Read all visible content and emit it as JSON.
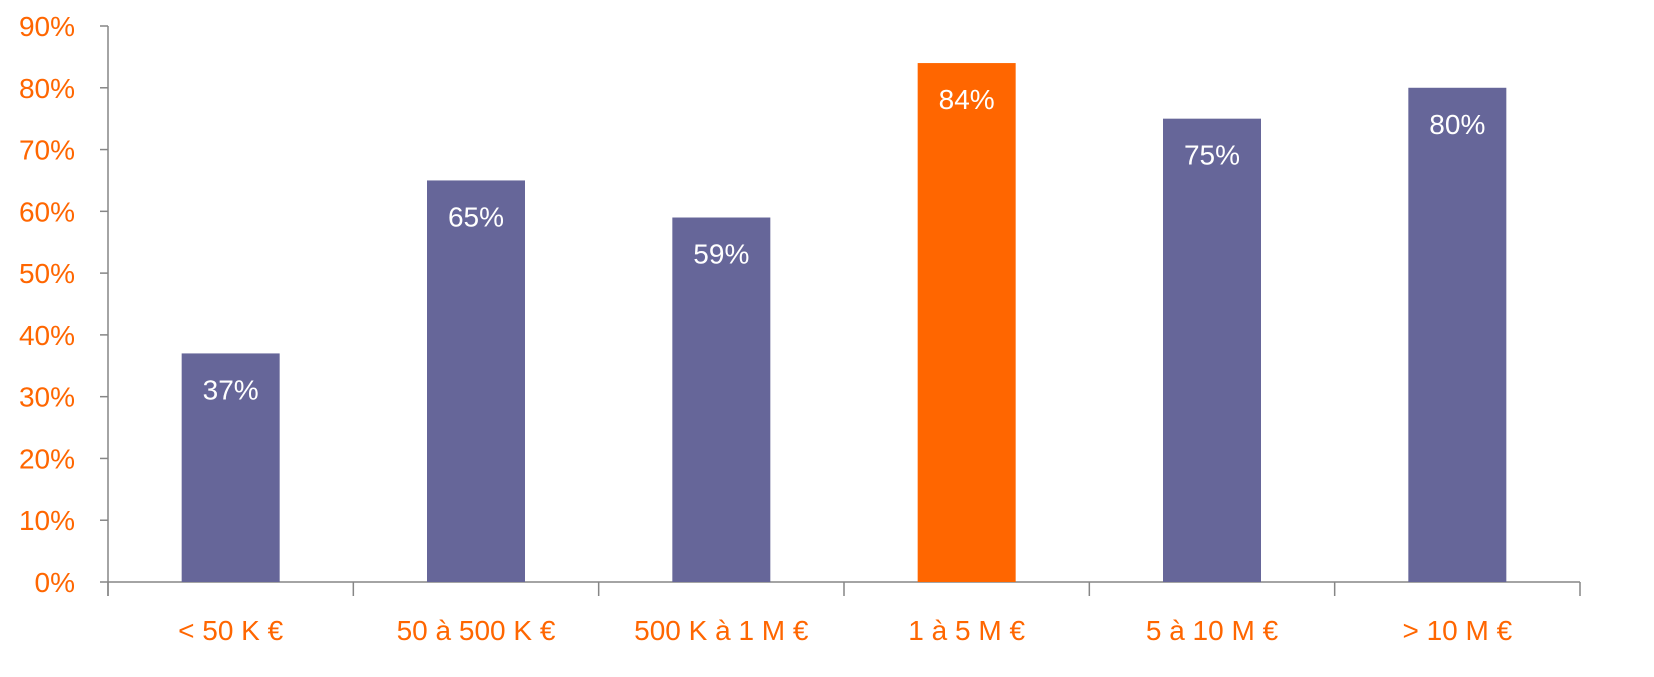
{
  "chart_data": {
    "type": "bar",
    "categories": [
      "< 50 K €",
      "50 à 500 K €",
      "500 K à 1 M €",
      "1 à 5 M €",
      "5 à 10 M €",
      "> 10 M €"
    ],
    "values": [
      37,
      65,
      59,
      84,
      75,
      80
    ],
    "data_labels": [
      "37%",
      "65%",
      "59%",
      "84%",
      "75%",
      "80%"
    ],
    "y_ticks": [
      "0%",
      "10%",
      "20%",
      "30%",
      "40%",
      "50%",
      "60%",
      "70%",
      "80%",
      "90%"
    ],
    "ylim": [
      0,
      90
    ],
    "y_unit": "%",
    "highlight_index": 3,
    "grid": false,
    "legend": "none",
    "colors": {
      "bar": "#666699",
      "highlight": "#ff6600",
      "axis_text": "#ff6600",
      "axis_line": "#868686",
      "data_label": "#ffffff"
    }
  }
}
